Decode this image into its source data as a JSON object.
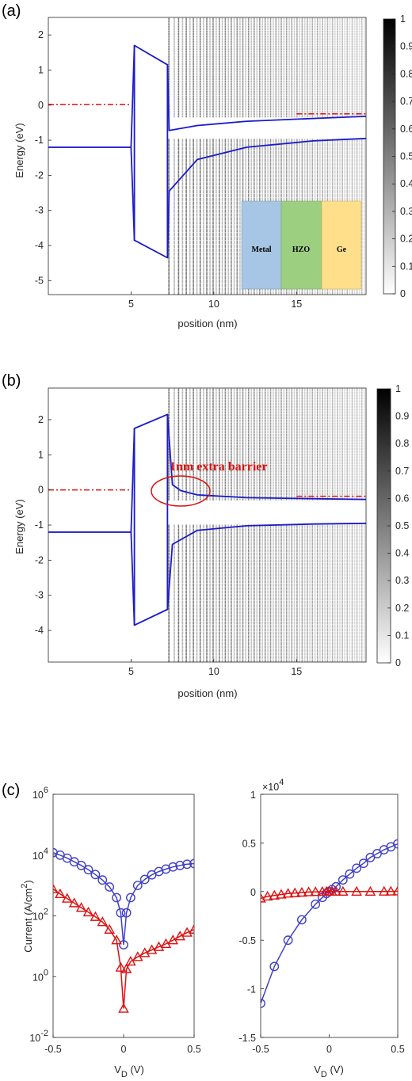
{
  "panels": {
    "a": "(a)",
    "b": "(b)",
    "c": "(c)"
  },
  "colors": {
    "band": "#1a1acc",
    "fermi": "#dd1111",
    "circle": "#4040c8",
    "triangle": "#e01010",
    "metal": "#a7c5e5",
    "hzo": "#9ccf80",
    "ge": "#ffdf8a"
  },
  "chart_data": [
    {
      "id": "a",
      "type": "line",
      "xlabel": "position (nm)",
      "ylabel": "Energy (eV)",
      "xlim": [
        0,
        19.2
      ],
      "ylim": [
        -5.4,
        2.5
      ],
      "xticks": [
        5,
        10,
        15
      ],
      "yticks": [
        2,
        1,
        0,
        -1,
        -2,
        -3,
        -4,
        -5
      ],
      "series": [
        {
          "role": "conduction_band",
          "x": [
            0,
            5,
            5.2,
            7.2,
            7.3,
            9,
            12,
            16,
            19.2
          ],
          "y": [
            -1.2,
            -1.2,
            1.7,
            1.15,
            -0.72,
            -0.58,
            -0.46,
            -0.38,
            -0.32
          ]
        },
        {
          "role": "valence_band",
          "x": [
            0,
            5,
            5.2,
            7.2,
            7.3,
            9,
            12,
            16,
            19.2
          ],
          "y": [
            -1.2,
            -1.2,
            -3.85,
            -4.35,
            -2.45,
            -1.55,
            -1.2,
            -1.02,
            -0.95
          ]
        },
        {
          "role": "fermi_level_left",
          "x": [
            0,
            4.9
          ],
          "y": [
            0.02,
            0.02
          ]
        },
        {
          "role": "fermi_level_right",
          "x": [
            15,
            19.2
          ],
          "y": [
            -0.25,
            -0.25
          ]
        }
      ],
      "colorbar": {
        "ticks": [
          "0",
          "0.1",
          "0.2",
          "0.3",
          "0.4",
          "0.5",
          "0.6",
          "0.7",
          "0.8",
          "0.9",
          "1"
        ],
        "range": [
          0,
          1
        ]
      },
      "inset": [
        "Metal",
        "HZO",
        "Ge"
      ]
    },
    {
      "id": "b",
      "type": "line",
      "xlabel": "position (nm)",
      "ylabel": "Energy (eV)",
      "xlim": [
        0,
        19.2
      ],
      "ylim": [
        -4.9,
        2.9
      ],
      "xticks": [
        5,
        10,
        15
      ],
      "yticks": [
        2,
        1,
        0,
        -1,
        -2,
        -3,
        -4
      ],
      "series": [
        {
          "role": "conduction_band",
          "x": [
            0,
            5,
            5.2,
            7.2,
            7.5,
            8,
            9,
            12,
            16,
            19.2
          ],
          "y": [
            -1.2,
            -1.2,
            1.75,
            2.15,
            0.15,
            -0.02,
            -0.14,
            -0.22,
            -0.25,
            -0.27
          ]
        },
        {
          "role": "valence_band",
          "x": [
            0,
            5,
            5.2,
            7.2,
            7.5,
            9,
            12,
            16,
            19.2
          ],
          "y": [
            -1.2,
            -1.2,
            -3.85,
            -3.4,
            -1.55,
            -1.15,
            -1.02,
            -0.97,
            -0.95
          ]
        },
        {
          "role": "fermi_level_left",
          "x": [
            0,
            4.9
          ],
          "y": [
            0.0,
            0.0
          ]
        },
        {
          "role": "fermi_level_right",
          "x": [
            15,
            19.2
          ],
          "y": [
            -0.18,
            -0.18
          ]
        }
      ],
      "colorbar": {
        "ticks": [
          "0",
          "0.1",
          "0.2",
          "0.3",
          "0.4",
          "0.5",
          "0.6",
          "0.7",
          "0.8",
          "0.9",
          "1"
        ],
        "range": [
          0,
          1
        ]
      },
      "annotation": "1nm extra barrier"
    },
    {
      "id": "c_log",
      "type": "line",
      "xlabel": "V_D (V)",
      "ylabel": "Current (A/cm²)",
      "xlim": [
        -0.5,
        0.5
      ],
      "ylim_log10": [
        -2,
        6
      ],
      "xticks": [
        "-0.5",
        "0",
        "0.5"
      ],
      "yticks_exp": [
        "6",
        "4",
        "2",
        "0",
        "-2"
      ],
      "series": [
        {
          "marker": "circle",
          "x": [
            -0.5,
            -0.45,
            -0.4,
            -0.35,
            -0.3,
            -0.25,
            -0.2,
            -0.15,
            -0.1,
            -0.05,
            -0.02,
            0,
            0.02,
            0.05,
            0.1,
            0.15,
            0.2,
            0.25,
            0.3,
            0.35,
            0.4,
            0.45,
            0.5
          ],
          "log10y": [
            4.08,
            4.0,
            3.9,
            3.78,
            3.66,
            3.52,
            3.36,
            3.18,
            2.95,
            2.6,
            2.1,
            1.05,
            2.1,
            2.6,
            3.0,
            3.2,
            3.35,
            3.46,
            3.54,
            3.61,
            3.66,
            3.7,
            3.72
          ]
        },
        {
          "marker": "triangle",
          "x": [
            -0.5,
            -0.45,
            -0.4,
            -0.35,
            -0.3,
            -0.25,
            -0.2,
            -0.15,
            -0.1,
            -0.05,
            -0.02,
            0,
            0.02,
            0.05,
            0.1,
            0.15,
            0.2,
            0.25,
            0.3,
            0.35,
            0.4,
            0.45,
            0.5
          ],
          "log10y": [
            2.88,
            2.72,
            2.57,
            2.42,
            2.27,
            2.12,
            1.97,
            1.8,
            1.55,
            1.2,
            0.3,
            -1.05,
            0.25,
            0.5,
            0.65,
            0.78,
            0.88,
            0.98,
            1.08,
            1.2,
            1.33,
            1.45,
            1.55
          ]
        }
      ]
    },
    {
      "id": "c_linear",
      "type": "line",
      "xlabel": "V_D (V)",
      "ylabel": "",
      "xlim": [
        -0.5,
        0.5
      ],
      "ylim": [
        -1.5,
        1
      ],
      "scale_label": "×10",
      "scale_exp": "4",
      "xticks": [
        "-0.5",
        "0",
        "0.5"
      ],
      "yticks": [
        "1",
        "0.5",
        "0",
        "-0.5",
        "-1",
        "-1.5"
      ],
      "series": [
        {
          "marker": "circle",
          "x": [
            -0.5,
            -0.4,
            -0.3,
            -0.2,
            -0.1,
            -0.05,
            -0.02,
            0,
            0.02,
            0.05,
            0.1,
            0.15,
            0.2,
            0.25,
            0.3,
            0.35,
            0.4,
            0.45,
            0.5
          ],
          "y": [
            -1.15,
            -0.77,
            -0.5,
            -0.29,
            -0.13,
            -0.06,
            -0.02,
            0,
            0.02,
            0.05,
            0.12,
            0.18,
            0.24,
            0.29,
            0.35,
            0.39,
            0.43,
            0.46,
            0.49
          ]
        },
        {
          "marker": "triangle",
          "x": [
            -0.5,
            -0.45,
            -0.4,
            -0.35,
            -0.3,
            -0.25,
            -0.2,
            -0.15,
            -0.1,
            -0.05,
            -0.02,
            0,
            0.02,
            0.05,
            0.1,
            0.2,
            0.3,
            0.4,
            0.45,
            0.5
          ],
          "y": [
            -0.07,
            -0.05,
            -0.04,
            -0.03,
            -0.02,
            -0.015,
            -0.01,
            -0.005,
            -0.003,
            -0.001,
            0,
            0,
            0,
            0,
            0,
            0,
            0,
            0.001,
            0.002,
            0.003
          ]
        }
      ]
    }
  ]
}
